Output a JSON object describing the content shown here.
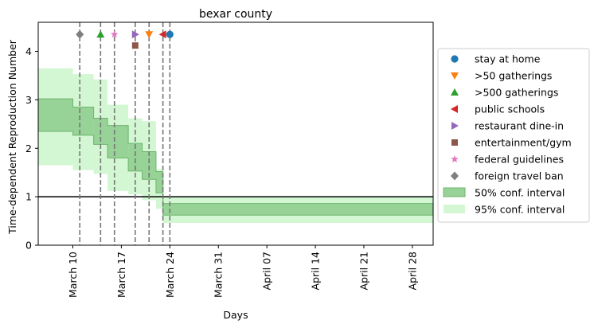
{
  "chart_data": {
    "type": "line",
    "title": "bexar county",
    "xlabel": "Days",
    "ylabel": "Time-dependent Reproduction Number",
    "xlim": [
      "2020-03-05",
      "2020-05-01"
    ],
    "ylim": [
      0,
      4.6
    ],
    "xticks": [
      {
        "date": "2020-03-10",
        "label": "March 10"
      },
      {
        "date": "2020-03-17",
        "label": "March 17"
      },
      {
        "date": "2020-03-24",
        "label": "March 24"
      },
      {
        "date": "2020-03-31",
        "label": "March 31"
      },
      {
        "date": "2020-04-07",
        "label": "April 07"
      },
      {
        "date": "2020-04-14",
        "label": "April 14"
      },
      {
        "date": "2020-04-21",
        "label": "April 21"
      },
      {
        "date": "2020-04-28",
        "label": "April 28"
      }
    ],
    "yticks": [
      0,
      1,
      2,
      3,
      4
    ],
    "reference_line": {
      "y": 1,
      "color": "#000000"
    },
    "intervals": {
      "segments": [
        {
          "start": "2020-03-05",
          "end": "2020-03-10",
          "ci50": [
            2.35,
            3.02
          ],
          "ci95": [
            1.65,
            3.65
          ]
        },
        {
          "start": "2020-03-10",
          "end": "2020-03-13",
          "ci50": [
            2.27,
            2.85
          ],
          "ci95": [
            1.55,
            3.53
          ]
        },
        {
          "start": "2020-03-13",
          "end": "2020-03-15",
          "ci50": [
            2.08,
            2.62
          ],
          "ci95": [
            1.47,
            3.42
          ]
        },
        {
          "start": "2020-03-15",
          "end": "2020-03-18",
          "ci50": [
            1.8,
            2.47
          ],
          "ci95": [
            1.12,
            2.9
          ]
        },
        {
          "start": "2020-03-18",
          "end": "2020-03-20",
          "ci50": [
            1.53,
            2.1
          ],
          "ci95": [
            1.05,
            2.62
          ]
        },
        {
          "start": "2020-03-20",
          "end": "2020-03-22",
          "ci50": [
            1.36,
            1.93
          ],
          "ci95": [
            0.93,
            2.56
          ]
        },
        {
          "start": "2020-03-22",
          "end": "2020-03-23",
          "ci50": [
            1.08,
            1.52
          ],
          "ci95": [
            0.75,
            1.57
          ]
        },
        {
          "start": "2020-03-23",
          "end": "2020-05-01",
          "ci50": [
            0.62,
            0.86
          ],
          "ci95": [
            0.46,
            0.99
          ]
        }
      ]
    },
    "series": [
      {
        "name": "stay at home",
        "date": "2020-03-24",
        "y": 4.35,
        "marker": "circle",
        "color": "#1f77b4"
      },
      {
        "name": ">50 gatherings",
        "date": "2020-03-21",
        "y": 4.35,
        "marker": "triangle-down",
        "color": "#ff7f0e"
      },
      {
        "name": ">500 gatherings",
        "date": "2020-03-14",
        "y": 4.35,
        "marker": "triangle-up",
        "color": "#2ca02c"
      },
      {
        "name": "public schools",
        "date": "2020-03-23",
        "y": 4.35,
        "marker": "triangle-left",
        "color": "#d62728"
      },
      {
        "name": "restaurant dine-in",
        "date": "2020-03-19",
        "y": 4.35,
        "marker": "triangle-right",
        "color": "#9467bd"
      },
      {
        "name": "entertainment/gym",
        "date": "2020-03-19",
        "y": 4.12,
        "marker": "square",
        "color": "#8c564b"
      },
      {
        "name": "federal guidelines",
        "date": "2020-03-16",
        "y": 4.35,
        "marker": "star",
        "color": "#e377c2"
      },
      {
        "name": "foreign travel ban",
        "date": "2020-03-11",
        "y": 4.35,
        "marker": "diamond",
        "color": "#7f7f7f"
      }
    ],
    "vertical_lines": [
      "2020-03-11",
      "2020-03-14",
      "2020-03-16",
      "2020-03-19",
      "2020-03-21",
      "2020-03-23",
      "2020-03-24"
    ],
    "legend": {
      "placement": "right",
      "entries": [
        {
          "label": "stay at home",
          "marker": "circle",
          "color": "#1f77b4"
        },
        {
          "label": ">50 gatherings",
          "marker": "triangle-down",
          "color": "#ff7f0e"
        },
        {
          "label": ">500 gatherings",
          "marker": "triangle-up",
          "color": "#2ca02c"
        },
        {
          "label": "public schools",
          "marker": "triangle-left",
          "color": "#d62728"
        },
        {
          "label": "restaurant dine-in",
          "marker": "triangle-right",
          "color": "#9467bd"
        },
        {
          "label": "entertainment/gym",
          "marker": "square",
          "color": "#8c564b"
        },
        {
          "label": "federal guidelines",
          "marker": "star",
          "color": "#e377c2"
        },
        {
          "label": "foreign travel ban",
          "marker": "diamond",
          "color": "#7f7f7f"
        },
        {
          "label": "50% conf. interval",
          "marker": "patch",
          "color": "#97d297"
        },
        {
          "label": "95% conf. interval",
          "marker": "patch",
          "color": "#d3f7d3"
        }
      ]
    },
    "colors": {
      "ci50_fill": "#97d297",
      "ci50_edge": "#6fb46f",
      "ci95_fill": "#d3f7d3",
      "vline": "#777777"
    },
    "grid": false
  }
}
